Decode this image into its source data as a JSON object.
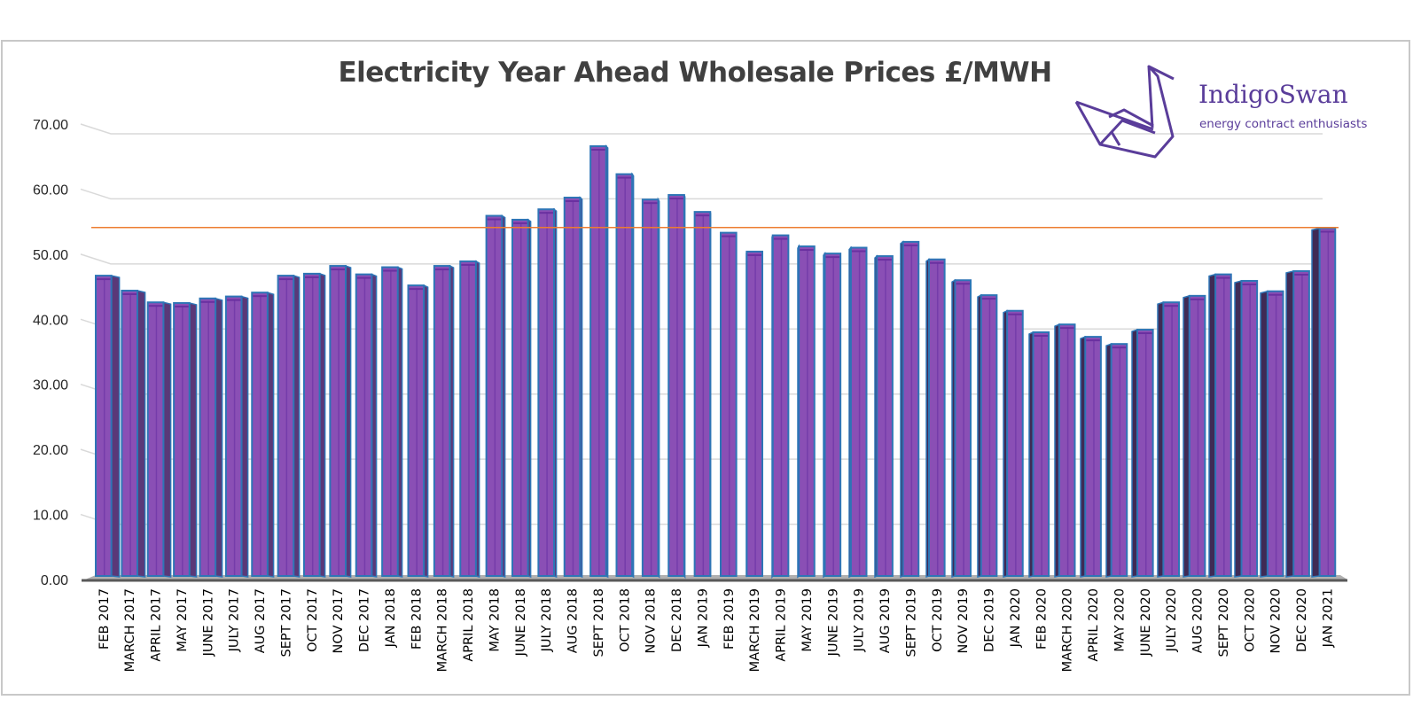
{
  "chart_data": {
    "type": "bar",
    "title": "Electricity Year Ahead Wholesale Prices £/MWH",
    "xlabel": "",
    "ylabel": "",
    "ylim": [
      0,
      70
    ],
    "yticks": [
      "0.00",
      "10.00",
      "20.00",
      "30.00",
      "40.00",
      "50.00",
      "60.00",
      "70.00"
    ],
    "grid": true,
    "legend": "none",
    "reference_line": {
      "value": 54.1,
      "color": "#ed7d31"
    },
    "colors": {
      "bar_front": "#8a4fb5",
      "bar_side": "#5a3878",
      "bar_edge": "#2e75b6",
      "floor": "#b0b0b0"
    },
    "categories": [
      "FEB 2017",
      "MARCH 2017",
      "APRIL 2017",
      "MAY 2017",
      "JUNE 2017",
      "JULY 2017",
      "AUG 2017",
      "SEPT 2017",
      "OCT 2017",
      "NOV 2017",
      "DEC 2017",
      "JAN 2018",
      "FEB 2018",
      "MARCH 2018",
      "APRIL 2018",
      "MAY 2018",
      "JUNE 2018",
      "JULY 2018",
      "AUG 2018",
      "SEPT 2018",
      "OCT 2018",
      "NOV 2018",
      "DEC 2018",
      "JAN 2019",
      "FEB 2019",
      "MARCH 2019",
      "APRIL 2019",
      "MAY 2019",
      "JUNE 2019",
      "JULY 2019",
      "AUG 2019",
      "SEPT 2019",
      "OCT 2019",
      "NOV 2019",
      "DEC 2019",
      "JAN 2020",
      "FEB 2020",
      "MARCH 2020",
      "APRIL 2020",
      "MAY 2020",
      "JUNE 2020",
      "JULY 2020",
      "AUG 2020",
      "SEPT 2020",
      "OCT 2020",
      "NOV 2020",
      "DEC 2020",
      "JAN 2021"
    ],
    "values": [
      46.7,
      44.4,
      42.6,
      42.5,
      43.2,
      43.5,
      44.1,
      46.7,
      47.0,
      48.2,
      46.9,
      48.0,
      45.2,
      48.2,
      48.9,
      55.9,
      55.3,
      56.9,
      58.7,
      66.6,
      62.3,
      58.4,
      59.1,
      56.5,
      53.3,
      50.4,
      52.9,
      51.2,
      50.1,
      51.0,
      49.7,
      51.9,
      49.2,
      46.0,
      43.7,
      41.3,
      38.0,
      39.2,
      37.3,
      36.2,
      38.4,
      42.6,
      43.6,
      46.9,
      45.9,
      44.3,
      47.4,
      54.0
    ]
  },
  "logo": {
    "name": "IndigoSwan",
    "tagline": "energy contract enthusiasts",
    "color": "#5a3d9a"
  }
}
